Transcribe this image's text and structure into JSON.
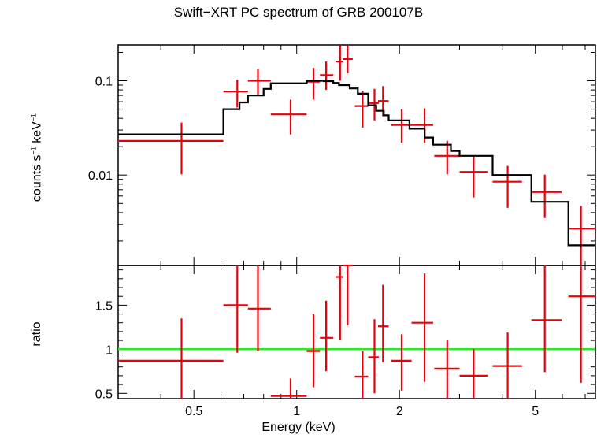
{
  "chart_data": [
    {
      "type": "scatter",
      "title": "Swift−XRT PC spectrum of GRB 200107B",
      "ylabel_text": "counts s",
      "ylabel_exp1": "−1",
      "ylabel_unit": " keV",
      "ylabel_exp2": "−1",
      "xscale": "log",
      "yscale": "log",
      "xlim": [
        0.3,
        7.5
      ],
      "ylim": [
        0.0011,
        0.24
      ],
      "yticks": [
        {
          "value": 0.1,
          "label": "0.1"
        },
        {
          "value": 0.01,
          "label": "0.01"
        }
      ],
      "series": [
        {
          "kind": "data",
          "color": "#e8000b",
          "points": [
            {
              "x": 0.46,
              "xlo": 0.3,
              "xhi": 0.61,
              "y": 0.023,
              "ylo": 0.0102,
              "yhi": 0.036
            },
            {
              "x": 0.67,
              "xlo": 0.61,
              "xhi": 0.72,
              "y": 0.077,
              "ylo": 0.052,
              "yhi": 0.103
            },
            {
              "x": 0.77,
              "xlo": 0.72,
              "xhi": 0.84,
              "y": 0.1,
              "ylo": 0.07,
              "yhi": 0.133
            },
            {
              "x": 0.96,
              "xlo": 0.84,
              "xhi": 1.07,
              "y": 0.044,
              "ylo": 0.027,
              "yhi": 0.063
            },
            {
              "x": 1.12,
              "xlo": 1.07,
              "xhi": 1.17,
              "y": 0.098,
              "ylo": 0.063,
              "yhi": 0.137
            },
            {
              "x": 1.22,
              "xlo": 1.17,
              "xhi": 1.28,
              "y": 0.115,
              "ylo": 0.08,
              "yhi": 0.16
            },
            {
              "x": 1.34,
              "xlo": 1.3,
              "xhi": 1.37,
              "y": 0.16,
              "ylo": 0.1,
              "yhi": 0.24
            },
            {
              "x": 1.41,
              "xlo": 1.37,
              "xhi": 1.46,
              "y": 0.17,
              "ylo": 0.12,
              "yhi": 0.24
            },
            {
              "x": 1.56,
              "xlo": 1.48,
              "xhi": 1.62,
              "y": 0.054,
              "ylo": 0.032,
              "yhi": 0.078
            },
            {
              "x": 1.69,
              "xlo": 1.62,
              "xhi": 1.74,
              "y": 0.058,
              "ylo": 0.038,
              "yhi": 0.082
            },
            {
              "x": 1.79,
              "xlo": 1.73,
              "xhi": 1.86,
              "y": 0.061,
              "ylo": 0.042,
              "yhi": 0.088
            },
            {
              "x": 2.03,
              "xlo": 1.89,
              "xhi": 2.17,
              "y": 0.034,
              "ylo": 0.022,
              "yhi": 0.05
            },
            {
              "x": 2.37,
              "xlo": 2.17,
              "xhi": 2.51,
              "y": 0.034,
              "ylo": 0.022,
              "yhi": 0.051
            },
            {
              "x": 2.76,
              "xlo": 2.53,
              "xhi": 3.0,
              "y": 0.016,
              "ylo": 0.0102,
              "yhi": 0.023
            },
            {
              "x": 3.3,
              "xlo": 3.0,
              "xhi": 3.62,
              "y": 0.0108,
              "ylo": 0.0058,
              "yhi": 0.0162
            },
            {
              "x": 4.15,
              "xlo": 3.75,
              "xhi": 4.57,
              "y": 0.0085,
              "ylo": 0.0045,
              "yhi": 0.0125
            },
            {
              "x": 5.33,
              "xlo": 4.87,
              "xhi": 5.97,
              "y": 0.0066,
              "ylo": 0.0035,
              "yhi": 0.0101
            },
            {
              "x": 6.8,
              "xlo": 6.25,
              "xhi": 7.5,
              "y": 0.0027,
              "ylo": 0.0011,
              "yhi": 0.0047
            }
          ]
        },
        {
          "kind": "model",
          "color": "#000000",
          "steps": [
            [
              0.3,
              0.61,
              0.027
            ],
            [
              0.61,
              0.68,
              0.05
            ],
            [
              0.68,
              0.72,
              0.059
            ],
            [
              0.72,
              0.8,
              0.07
            ],
            [
              0.8,
              0.84,
              0.082
            ],
            [
              0.84,
              1.07,
              0.094
            ],
            [
              1.07,
              1.2,
              0.1
            ],
            [
              1.2,
              1.28,
              0.099
            ],
            [
              1.28,
              1.33,
              0.095
            ],
            [
              1.33,
              1.43,
              0.09
            ],
            [
              1.43,
              1.51,
              0.083
            ],
            [
              1.51,
              1.62,
              0.073
            ],
            [
              1.62,
              1.71,
              0.055
            ],
            [
              1.71,
              1.8,
              0.048
            ],
            [
              1.8,
              1.86,
              0.043
            ],
            [
              1.86,
              2.14,
              0.038
            ],
            [
              2.14,
              2.37,
              0.031
            ],
            [
              2.37,
              2.51,
              0.025
            ],
            [
              2.51,
              2.83,
              0.021
            ],
            [
              2.83,
              3.0,
              0.018
            ],
            [
              3.0,
              3.75,
              0.016
            ],
            [
              3.75,
              4.87,
              0.01
            ],
            [
              4.87,
              6.25,
              0.0052
            ],
            [
              6.25,
              7.5,
              0.0018
            ]
          ]
        }
      ]
    },
    {
      "type": "scatter",
      "ylabel": "ratio",
      "xlabel": "Energy (keV)",
      "xscale": "log",
      "yscale": "linear",
      "xlim": [
        0.3,
        7.5
      ],
      "ylim": [
        0.44,
        1.95
      ],
      "xticks": [
        {
          "value": 0.5,
          "label": "0.5"
        },
        {
          "value": 1,
          "label": "1"
        },
        {
          "value": 2,
          "label": "2"
        },
        {
          "value": 5,
          "label": "5"
        }
      ],
      "yticks": [
        {
          "value": 0.5,
          "label": "0.5"
        },
        {
          "value": 1,
          "label": "1"
        },
        {
          "value": 1.5,
          "label": "1.5"
        }
      ],
      "reference_line": {
        "y": 1,
        "color": "#22ee22"
      },
      "series": [
        {
          "kind": "data",
          "color": "#e8000b",
          "points": [
            {
              "x": 0.46,
              "xlo": 0.3,
              "xhi": 0.61,
              "y": 0.87,
              "ylo": 0.44,
              "yhi": 1.35
            },
            {
              "x": 0.67,
              "xlo": 0.61,
              "xhi": 0.72,
              "y": 1.5,
              "ylo": 0.96,
              "yhi": 1.95
            },
            {
              "x": 0.77,
              "xlo": 0.72,
              "xhi": 0.84,
              "y": 1.46,
              "ylo": 0.98,
              "yhi": 1.95
            },
            {
              "x": 0.96,
              "xlo": 0.84,
              "xhi": 1.07,
              "y": 0.47,
              "ylo": 0.44,
              "yhi": 0.67
            },
            {
              "x": 1.12,
              "xlo": 1.07,
              "xhi": 1.17,
              "y": 0.98,
              "ylo": 0.57,
              "yhi": 1.4
            },
            {
              "x": 1.22,
              "xlo": 1.17,
              "xhi": 1.28,
              "y": 1.13,
              "ylo": 0.75,
              "yhi": 1.55
            },
            {
              "x": 1.34,
              "xlo": 1.3,
              "xhi": 1.37,
              "y": 1.82,
              "ylo": 1.1,
              "yhi": 1.95
            },
            {
              "x": 1.41,
              "xlo": 1.37,
              "xhi": 1.46,
              "y": 1.95,
              "ylo": 1.27,
              "yhi": 1.95
            },
            {
              "x": 1.56,
              "xlo": 1.48,
              "xhi": 1.62,
              "y": 0.69,
              "ylo": 0.44,
              "yhi": 0.98
            },
            {
              "x": 1.69,
              "xlo": 1.62,
              "xhi": 1.74,
              "y": 0.91,
              "ylo": 0.5,
              "yhi": 1.34
            },
            {
              "x": 1.79,
              "xlo": 1.73,
              "xhi": 1.86,
              "y": 1.26,
              "ylo": 0.85,
              "yhi": 1.73
            },
            {
              "x": 2.03,
              "xlo": 1.89,
              "xhi": 2.17,
              "y": 0.87,
              "ylo": 0.53,
              "yhi": 1.17
            },
            {
              "x": 2.37,
              "xlo": 2.17,
              "xhi": 2.51,
              "y": 1.3,
              "ylo": 0.63,
              "yhi": 1.86
            },
            {
              "x": 2.76,
              "xlo": 2.53,
              "xhi": 3.0,
              "y": 0.78,
              "ylo": 0.44,
              "yhi": 1.1
            },
            {
              "x": 3.3,
              "xlo": 3.0,
              "xhi": 3.62,
              "y": 0.7,
              "ylo": 0.44,
              "yhi": 1.0
            },
            {
              "x": 4.15,
              "xlo": 3.75,
              "xhi": 4.57,
              "y": 0.81,
              "ylo": 0.44,
              "yhi": 1.19
            },
            {
              "x": 5.33,
              "xlo": 4.87,
              "xhi": 5.97,
              "y": 1.33,
              "ylo": 0.74,
              "yhi": 1.95
            },
            {
              "x": 6.8,
              "xlo": 6.25,
              "xhi": 7.5,
              "y": 1.6,
              "ylo": 0.62,
              "yhi": 1.95
            }
          ]
        }
      ]
    }
  ]
}
